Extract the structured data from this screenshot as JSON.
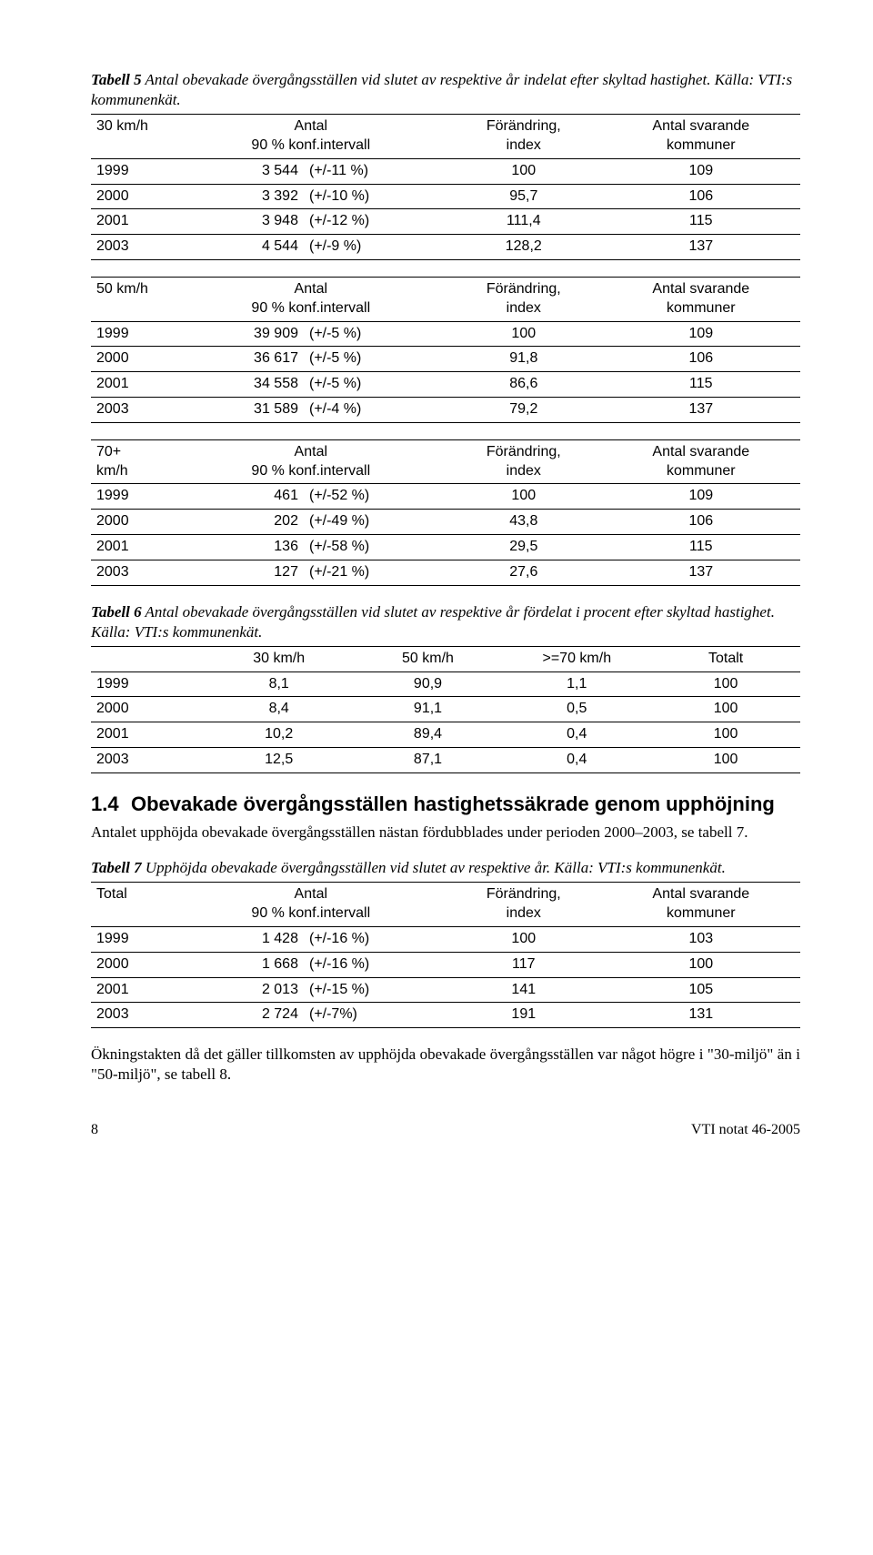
{
  "tabell5": {
    "caption_bold": "Tabell 5",
    "caption_rest": "  Antal obevakade övergångsställen vid slutet av respektive år indelat efter skyltad hastighet. Källa: VTI:s kommunenkät.",
    "header": {
      "antal": "Antal",
      "konf": "90 % konf.intervall",
      "forandring": "Förändring,",
      "index": "index",
      "svarande": "Antal svarande",
      "kommuner": "kommuner"
    },
    "blocks": [
      {
        "label": "30 km/h",
        "rows": [
          {
            "year": "1999",
            "n": "3 544",
            "ci": "(+/-11 %)",
            "idx": "100",
            "kom": "109"
          },
          {
            "year": "2000",
            "n": "3 392",
            "ci": "(+/-10 %)",
            "idx": "95,7",
            "kom": "106"
          },
          {
            "year": "2001",
            "n": "3 948",
            "ci": "(+/-12 %)",
            "idx": "111,4",
            "kom": "115"
          },
          {
            "year": "2003",
            "n": "4 544",
            "ci": "(+/-9 %)",
            "idx": "128,2",
            "kom": "137"
          }
        ]
      },
      {
        "label": "50 km/h",
        "rows": [
          {
            "year": "1999",
            "n": "39 909",
            "ci": "(+/-5 %)",
            "idx": "100",
            "kom": "109"
          },
          {
            "year": "2000",
            "n": "36 617",
            "ci": "(+/-5 %)",
            "idx": "91,8",
            "kom": "106"
          },
          {
            "year": "2001",
            "n": "34 558",
            "ci": "(+/-5 %)",
            "idx": "86,6",
            "kom": "115"
          },
          {
            "year": "2003",
            "n": "31 589",
            "ci": "(+/-4 %)",
            "idx": "79,2",
            "kom": "137"
          }
        ]
      },
      {
        "label_line1": "70+",
        "label_line2": "km/h",
        "rows": [
          {
            "year": "1999",
            "n": "461",
            "ci": "(+/-52 %)",
            "idx": "100",
            "kom": "109"
          },
          {
            "year": "2000",
            "n": "202",
            "ci": "(+/-49 %)",
            "idx": "43,8",
            "kom": "106"
          },
          {
            "year": "2001",
            "n": "136",
            "ci": "(+/-58 %)",
            "idx": "29,5",
            "kom": "115"
          },
          {
            "year": "2003",
            "n": "127",
            "ci": "(+/-21 %)",
            "idx": "27,6",
            "kom": "137"
          }
        ]
      }
    ]
  },
  "tabell6": {
    "caption_bold": "Tabell 6",
    "caption_rest": "  Antal obevakade övergångsställen vid slutet av respektive år fördelat i procent efter skyltad hastighet. Källa: VTI:s kommunenkät.",
    "cols": [
      "30 km/h",
      "50 km/h",
      ">=70 km/h",
      "Totalt"
    ],
    "rows": [
      {
        "year": "1999",
        "v": [
          "8,1",
          "90,9",
          "1,1",
          "100"
        ]
      },
      {
        "year": "2000",
        "v": [
          "8,4",
          "91,1",
          "0,5",
          "100"
        ]
      },
      {
        "year": "2001",
        "v": [
          "10,2",
          "89,4",
          "0,4",
          "100"
        ]
      },
      {
        "year": "2003",
        "v": [
          "12,5",
          "87,1",
          "0,4",
          "100"
        ]
      }
    ]
  },
  "section": {
    "num": "1.4",
    "title": "Obevakade övergångsställen hastighetssäkrade genom upphöjning",
    "para": "Antalet upphöjda obevakade övergångsställen nästan fördubblades under perioden 2000–2003, se tabell 7."
  },
  "tabell7": {
    "caption_bold": "Tabell 7",
    "caption_rest": "  Upphöjda obevakade övergångsställen vid slutet av respektive år. Källa: VTI:s kommunenkät.",
    "label": "Total",
    "rows": [
      {
        "year": "1999",
        "n": "1 428",
        "ci": "(+/-16 %)",
        "idx": "100",
        "kom": "103"
      },
      {
        "year": "2000",
        "n": "1 668",
        "ci": "(+/-16 %)",
        "idx": "117",
        "kom": "100"
      },
      {
        "year": "2001",
        "n": "2 013",
        "ci": "(+/-15 %)",
        "idx": "141",
        "kom": "105"
      },
      {
        "year": "2003",
        "n": "2 724",
        "ci": "(+/-7%)",
        "idx": "191",
        "kom": "131"
      }
    ]
  },
  "closing_para": "Ökningstakten då det gäller tillkomsten av upphöjda obevakade övergångsställen var något högre i \"30-miljö\" än i \"50-miljö\", se tabell 8.",
  "footer": {
    "page": "8",
    "doc": "VTI notat 46-2005"
  }
}
